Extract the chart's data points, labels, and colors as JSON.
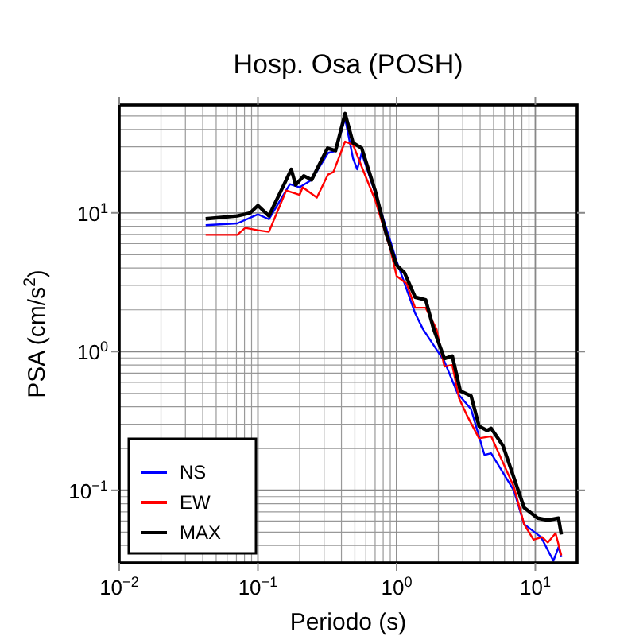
{
  "chart_data": {
    "type": "line",
    "title": "Hosp. Osa (POSH)",
    "xlabel": "Periodo (s)",
    "ylabel": "PSA (cm/s$^{2}$)",
    "log": "xy",
    "grid": true,
    "legend": "bottom left",
    "line_style": "solid",
    "xlim": [
      0.01,
      20
    ],
    "ylim": [
      0.03,
      60
    ],
    "xticks": [
      {
        "value": 0.01,
        "label": "10$^{−2}$"
      },
      {
        "value": 0.1,
        "label": "10$^{−1}$"
      },
      {
        "value": 1,
        "label": "10$^{0}$"
      },
      {
        "value": 10,
        "label": "10$^{1}$"
      }
    ],
    "yticks": [
      {
        "value": 0.1,
        "label": "10$^{−1}$"
      },
      {
        "value": 1,
        "label": "10$^{0}$"
      },
      {
        "value": 10,
        "label": "10$^{1}$"
      }
    ],
    "series": [
      {
        "name": "NS",
        "color": "#0000ff",
        "x": [
          0.042,
          0.071,
          0.1,
          0.12,
          0.17,
          0.2,
          0.244,
          0.32,
          0.363,
          0.425,
          0.485,
          0.52,
          0.56,
          0.7,
          1.0,
          1.36,
          1.55,
          2.21,
          2.75,
          3.44,
          4.3,
          4.8,
          7.0,
          8.3,
          11,
          13.5,
          14.7,
          15.4
        ],
        "values": [
          8.15,
          8.4,
          9.75,
          9.0,
          16.1,
          15.3,
          17.3,
          27,
          28,
          48,
          24.7,
          20.6,
          27,
          14,
          4.5,
          1.89,
          1.45,
          0.85,
          0.5,
          0.385,
          0.18,
          0.185,
          0.1,
          0.057,
          0.046,
          0.031,
          0.039,
          0.033
        ]
      },
      {
        "name": "EW",
        "color": "#ff0000",
        "x": [
          0.042,
          0.071,
          0.081,
          0.1,
          0.12,
          0.16,
          0.2,
          0.21,
          0.266,
          0.32,
          0.35,
          0.425,
          0.485,
          0.56,
          0.7,
          0.9,
          1.0,
          1.18,
          1.36,
          1.62,
          1.94,
          2.21,
          2.52,
          2.82,
          3.2,
          3.93,
          4.8,
          7.0,
          8.3,
          9.7,
          11.2,
          12.3,
          14,
          15.4
        ],
        "values": [
          6.95,
          6.95,
          7.8,
          7.5,
          7.3,
          14.5,
          13.5,
          15.3,
          12.9,
          18.9,
          19.7,
          32.7,
          31,
          21.5,
          12.4,
          5.5,
          3.5,
          3.1,
          2.07,
          2.07,
          1.45,
          0.78,
          0.8,
          0.46,
          0.35,
          0.237,
          0.245,
          0.106,
          0.057,
          0.044,
          0.046,
          0.042,
          0.049,
          0.034
        ]
      },
      {
        "name": "MAX",
        "color": "#000000",
        "x": [
          0.042,
          0.071,
          0.088,
          0.1,
          0.12,
          0.144,
          0.174,
          0.187,
          0.214,
          0.244,
          0.266,
          0.318,
          0.363,
          0.425,
          0.485,
          0.56,
          0.7,
          0.84,
          1.0,
          1.14,
          1.36,
          1.62,
          1.85,
          2.21,
          2.52,
          2.88,
          3.44,
          3.93,
          4.49,
          4.8,
          5.84,
          8.3,
          10.4,
          12.3,
          14.7,
          15.4
        ],
        "values": [
          9.06,
          9.5,
          10,
          11.3,
          9.5,
          13.9,
          20.6,
          15.9,
          18.5,
          17.3,
          20.6,
          29.3,
          28.1,
          52,
          32,
          29.3,
          14.5,
          7.1,
          4.2,
          3.7,
          2.47,
          2.36,
          1.45,
          0.89,
          0.93,
          0.52,
          0.48,
          0.29,
          0.27,
          0.28,
          0.21,
          0.075,
          0.063,
          0.061,
          0.063,
          0.048
        ]
      }
    ]
  }
}
